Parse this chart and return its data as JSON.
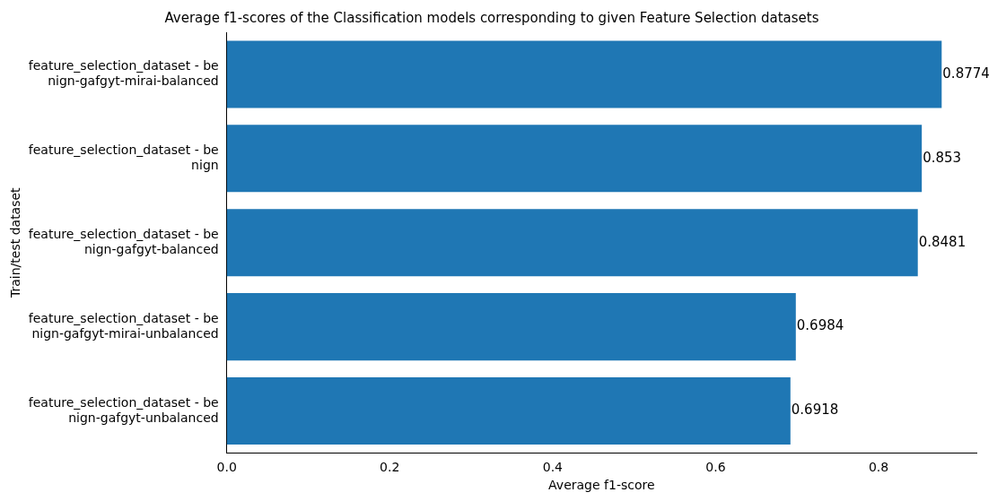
{
  "chart_data": {
    "type": "bar",
    "orientation": "horizontal",
    "title": "Average f1-scores of the Classification models corresponding to given Feature Selection datasets",
    "xlabel": "Average f1-score",
    "ylabel": "Train/test dataset",
    "categories": [
      "feature_selection_dataset - be\nnign-gafgyt-mirai-balanced",
      "feature_selection_dataset - be\nnign",
      "feature_selection_dataset - be\nnign-gafgyt-balanced",
      "feature_selection_dataset - be\nnign-gafgyt-mirai-unbalanced",
      "feature_selection_dataset - be\nnign-gafgyt-unbalanced"
    ],
    "values": [
      0.8774,
      0.853,
      0.8481,
      0.6984,
      0.6918
    ],
    "color": "#1f77b4",
    "xlim": [
      0,
      0.92
    ],
    "xticks": [
      {
        "value": 0,
        "label": "0.0"
      },
      0.2,
      0.4,
      0.6,
      0.8
    ],
    "grid": false,
    "legend": false,
    "data_labels": true
  }
}
